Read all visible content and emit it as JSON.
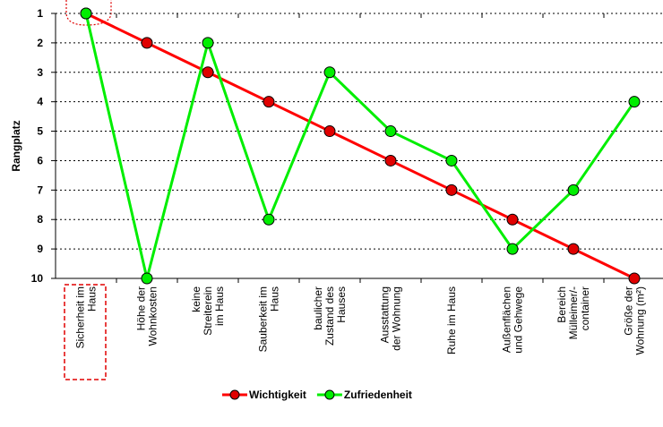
{
  "chart_data": {
    "type": "line",
    "ylabel": "Rangplatz",
    "categories": [
      [
        "Sicherheit im",
        "Haus"
      ],
      [
        "Höhe der",
        "Wohnkosten"
      ],
      [
        "keine",
        "Streiterein",
        "im Haus"
      ],
      [
        "Sauberkeit im",
        "Haus"
      ],
      [
        "baulicher",
        "Zustand des",
        "Hauses"
      ],
      [
        "Ausstattung",
        "der Wohnung"
      ],
      [
        "Ruhe im Haus"
      ],
      [
        "Außenflächen",
        "und Gehwege"
      ],
      [
        "Bereich",
        "Mülleimer/-",
        "container"
      ],
      [
        "Größe der",
        "Wohnung (m²)"
      ]
    ],
    "series": [
      {
        "name": "Wichtigkeit",
        "color": "#ff0000",
        "marker_color": "#e00000",
        "values": [
          1,
          2,
          3,
          4,
          5,
          6,
          7,
          8,
          9,
          10
        ]
      },
      {
        "name": "Zufriedenheit",
        "color": "#00ee00",
        "marker_color": "#00ee00",
        "values": [
          1,
          10,
          2,
          8,
          3,
          5,
          6,
          9,
          7,
          4
        ]
      }
    ],
    "ylim": [
      1,
      10
    ],
    "yticks": [
      1,
      2,
      3,
      4,
      5,
      6,
      7,
      8,
      9,
      10
    ],
    "y_inverted": true,
    "grid": true,
    "legend": "bottom"
  }
}
